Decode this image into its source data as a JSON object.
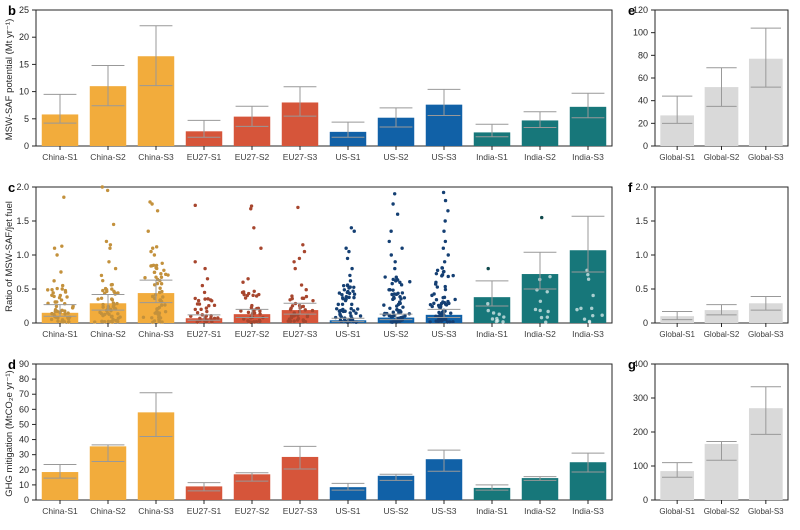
{
  "figure": {
    "panels": [
      {
        "letter": "b"
      },
      {
        "letter": "c"
      },
      {
        "letter": "d"
      },
      {
        "letter": "e"
      },
      {
        "letter": "f"
      },
      {
        "letter": "g"
      }
    ]
  },
  "colors": {
    "china": "#F2AC3C",
    "eu27": "#D6553A",
    "us": "#1161A7",
    "india": "#17777A",
    "global": "#D9D9D9",
    "error_bar": "#999999",
    "axis": "#262626"
  },
  "chart_data": [
    {
      "panel": "b",
      "type": "bar",
      "ylabel": "MSW-SAF potential (Mt yr⁻¹)",
      "ylim": [
        0,
        25
      ],
      "yticks": [
        "0",
        "5",
        "10",
        "15",
        "20",
        "25"
      ],
      "categories": [
        "China-S1",
        "China-S2",
        "China-S3",
        "EU27-S1",
        "EU27-S2",
        "EU27-S3",
        "US-S1",
        "US-S2",
        "US-S3",
        "India-S1",
        "India-S2",
        "India-S3"
      ],
      "values": [
        5.8,
        11.0,
        16.5,
        2.7,
        5.4,
        8.0,
        2.6,
        5.2,
        7.6,
        2.5,
        4.7,
        7.2
      ],
      "err_low": [
        4.2,
        7.4,
        11.1,
        1.6,
        3.6,
        5.5,
        1.6,
        3.5,
        5.6,
        1.7,
        3.4,
        5.2
      ],
      "err_high": [
        9.5,
        14.8,
        22.1,
        4.7,
        7.3,
        10.9,
        4.4,
        7.0,
        10.4,
        4.0,
        6.3,
        9.7
      ],
      "bar_colors": [
        "#F2AC3C",
        "#F2AC3C",
        "#F2AC3C",
        "#D6553A",
        "#D6553A",
        "#D6553A",
        "#1161A7",
        "#1161A7",
        "#1161A7",
        "#17777A",
        "#17777A",
        "#17777A"
      ]
    },
    {
      "panel": "c",
      "type": "bar+scatter",
      "ylabel": "Ratio of MSW-SAF/jet fuel",
      "ylim": [
        0,
        2.0
      ],
      "yticks": [
        "0",
        "0.5",
        "1.0",
        "1.5",
        "2.0"
      ],
      "categories": [
        "China-S1",
        "China-S2",
        "China-S3",
        "EU27-S1",
        "EU27-S2",
        "EU27-S3",
        "US-S1",
        "US-S2",
        "US-S3",
        "India-S1",
        "India-S2",
        "India-S3"
      ],
      "values": [
        0.15,
        0.29,
        0.44,
        0.07,
        0.13,
        0.19,
        0.04,
        0.08,
        0.12,
        0.38,
        0.72,
        1.07
      ],
      "err_low": [
        0.1,
        0.19,
        0.3,
        0.04,
        0.08,
        0.13,
        0.02,
        0.05,
        0.08,
        0.25,
        0.5,
        0.75
      ],
      "err_high": [
        0.27,
        0.42,
        0.63,
        0.12,
        0.2,
        0.29,
        0.07,
        0.13,
        0.2,
        0.62,
        1.04,
        1.57
      ],
      "bar_colors": [
        "#F2AC3C",
        "#F2AC3C",
        "#F2AC3C",
        "#D6553A",
        "#D6553A",
        "#D6553A",
        "#1161A7",
        "#1161A7",
        "#1161A7",
        "#17777A",
        "#17777A",
        "#17777A"
      ],
      "scatter": [
        {
          "n": 48,
          "spread": 0.5,
          "outliers": [
            0.55,
            0.62,
            0.75,
            1.0,
            1.1,
            1.13,
            1.85
          ],
          "color": "#C3913C"
        },
        {
          "n": 52,
          "spread": 0.62,
          "outliers": [
            0.7,
            0.8,
            0.9,
            1.1,
            1.15,
            1.2,
            1.45,
            1.95,
            2.0
          ],
          "color": "#C3913C"
        },
        {
          "n": 55,
          "spread": 0.9,
          "outliers": [
            1.0,
            1.05,
            1.1,
            1.12,
            1.35,
            1.65,
            1.75,
            1.78
          ],
          "color": "#C3913C"
        },
        {
          "n": 34,
          "spread": 0.38,
          "outliers": [
            0.45,
            0.55,
            0.65,
            0.8,
            0.9,
            1.73
          ],
          "color": "#A7462E"
        },
        {
          "n": 36,
          "spread": 0.5,
          "outliers": [
            0.6,
            0.65,
            1.1,
            1.4,
            1.68,
            1.72
          ],
          "color": "#A7462E"
        },
        {
          "n": 38,
          "spread": 0.62,
          "outliers": [
            0.8,
            0.9,
            0.95,
            1.05,
            1.15,
            1.7
          ],
          "color": "#A7462E"
        },
        {
          "n": 60,
          "spread": 0.55,
          "outliers": [
            0.62,
            0.7,
            0.8,
            0.95,
            1.05,
            1.1,
            1.35,
            1.4
          ],
          "color": "#143F73"
        },
        {
          "n": 62,
          "spread": 0.68,
          "outliers": [
            0.8,
            0.9,
            1.0,
            1.1,
            1.2,
            1.35,
            1.6,
            1.75,
            1.9
          ],
          "color": "#143F73"
        },
        {
          "n": 64,
          "spread": 0.8,
          "outliers": [
            0.9,
            1.0,
            1.1,
            1.2,
            1.35,
            1.5,
            1.65,
            1.8,
            1.92
          ],
          "color": "#143F73"
        },
        {
          "n": 10,
          "spread": 0.38,
          "outliers": [
            0.8
          ],
          "color": "rgba(235,245,245,0.7)",
          "outlier_color": "#10494C"
        },
        {
          "n": 11,
          "spread": 0.7,
          "outliers": [
            1.55
          ],
          "color": "rgba(235,245,245,0.7)",
          "outlier_color": "#10494C"
        },
        {
          "n": 12,
          "spread": 1.0,
          "outliers": [],
          "color": "rgba(235,245,245,0.7)",
          "outlier_color": "#10494C"
        }
      ]
    },
    {
      "panel": "d",
      "type": "bar",
      "ylabel": "GHG mitigation (MtCO₂e yr⁻¹)",
      "ylim": [
        0,
        90
      ],
      "yticks": [
        "0",
        "10",
        "20",
        "30",
        "40",
        "50",
        "60",
        "70",
        "80",
        "90"
      ],
      "categories": [
        "China-S1",
        "China-S2",
        "China-S3",
        "EU27-S1",
        "EU27-S2",
        "EU27-S3",
        "US-S1",
        "US-S2",
        "US-S3",
        "India-S1",
        "India-S2",
        "India-S3"
      ],
      "values": [
        18.5,
        35.5,
        58,
        9,
        17,
        28.5,
        8.5,
        16,
        27,
        8,
        14.5,
        25
      ],
      "err_low": [
        14.5,
        25.5,
        42,
        6,
        12.5,
        20.5,
        6.5,
        13,
        19,
        6.5,
        13,
        18.5
      ],
      "err_high": [
        23.5,
        36.5,
        71,
        11.5,
        18,
        35.5,
        11,
        17,
        33,
        10,
        15.5,
        31
      ],
      "bar_colors": [
        "#F2AC3C",
        "#F2AC3C",
        "#F2AC3C",
        "#D6553A",
        "#D6553A",
        "#D6553A",
        "#1161A7",
        "#1161A7",
        "#1161A7",
        "#17777A",
        "#17777A",
        "#17777A"
      ]
    },
    {
      "panel": "e",
      "type": "bar",
      "ylabel": "",
      "ylim": [
        0,
        120
      ],
      "yticks": [
        "0",
        "20",
        "40",
        "60",
        "80",
        "100",
        "120"
      ],
      "categories": [
        "Global-S1",
        "Global-S2",
        "Global-S3"
      ],
      "values": [
        27,
        52,
        77
      ],
      "err_low": [
        20,
        35,
        52
      ],
      "err_high": [
        44,
        69,
        104
      ],
      "bar_colors": [
        "#D9D9D9",
        "#D9D9D9",
        "#D9D9D9"
      ]
    },
    {
      "panel": "f",
      "type": "bar",
      "ylabel": "",
      "ylim": [
        0,
        2.0
      ],
      "yticks": [
        "0",
        "0.5",
        "1.0",
        "1.5",
        "2.0"
      ],
      "categories": [
        "Global-S1",
        "Global-S2",
        "Global-S3"
      ],
      "values": [
        0.1,
        0.19,
        0.29
      ],
      "err_low": [
        0.05,
        0.12,
        0.19
      ],
      "err_high": [
        0.17,
        0.27,
        0.39
      ],
      "bar_colors": [
        "#D9D9D9",
        "#D9D9D9",
        "#D9D9D9"
      ]
    },
    {
      "panel": "g",
      "type": "bar",
      "ylabel": "",
      "ylim": [
        0,
        400
      ],
      "yticks": [
        "0",
        "100",
        "200",
        "300",
        "400"
      ],
      "categories": [
        "Global-S1",
        "Global-S2",
        "Global-S3"
      ],
      "values": [
        85,
        165,
        270
      ],
      "err_low": [
        67,
        117,
        193
      ],
      "err_high": [
        110,
        172,
        333
      ],
      "bar_colors": [
        "#D9D9D9",
        "#D9D9D9",
        "#D9D9D9"
      ]
    }
  ]
}
